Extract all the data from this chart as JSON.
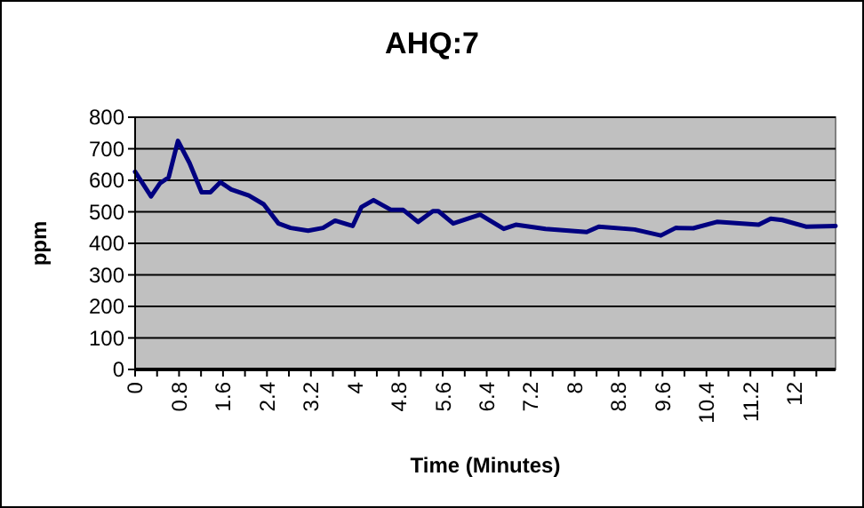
{
  "chart_data": {
    "type": "line",
    "title": "AHQ:7",
    "xlabel": "Time (Minutes)",
    "ylabel": "ppm",
    "x": [
      0,
      0.29,
      0.45,
      0.61,
      0.78,
      0.99,
      1.21,
      1.37,
      1.55,
      1.75,
      2.07,
      2.34,
      2.61,
      2.83,
      3.15,
      3.42,
      3.64,
      3.96,
      4.12,
      4.34,
      4.66,
      4.88,
      5.15,
      5.42,
      5.52,
      5.79,
      6.28,
      6.71,
      6.93,
      7.47,
      8.22,
      8.44,
      9.09,
      9.57,
      9.84,
      10.16,
      10.59,
      11.35,
      11.57,
      11.78,
      12.21,
      12.75
    ],
    "series": [
      {
        "color": "#000080",
        "values": [
          627,
          549,
          590,
          609,
          725,
          655,
          562,
          562,
          594,
          571,
          552,
          524,
          463,
          449,
          440,
          449,
          472,
          455,
          515,
          537,
          506,
          506,
          468,
          502,
          502,
          463,
          491,
          446,
          459,
          446,
          436,
          453,
          444,
          425,
          449,
          448,
          468,
          459,
          478,
          474,
          453,
          455
        ]
      }
    ],
    "xlim": [
      0,
      12.75
    ],
    "xticks": [
      0,
      {
        "value": 0.4,
        "label": null
      },
      0.8,
      {
        "value": 1.2,
        "label": null
      },
      1.6,
      {
        "value": 2,
        "label": null
      },
      2.4,
      {
        "value": 2.8,
        "label": null
      },
      3.2,
      {
        "value": 3.6,
        "label": null
      },
      4,
      {
        "value": 4.4,
        "label": null
      },
      4.8,
      {
        "value": 5.2,
        "label": null
      },
      5.6,
      {
        "value": 6,
        "label": null
      },
      6.4,
      {
        "value": 6.8,
        "label": null
      },
      7.2,
      {
        "value": 7.6,
        "label": null
      },
      8,
      {
        "value": 8.4,
        "label": null
      },
      8.8,
      {
        "value": 9.2,
        "label": null
      },
      9.6,
      {
        "value": 10,
        "label": null
      },
      10.4,
      {
        "value": 10.8,
        "label": null
      },
      11.2,
      {
        "value": 11.6,
        "label": null
      },
      12,
      {
        "value": 12.4,
        "label": null
      }
    ],
    "ylim": [
      0,
      800
    ],
    "yticks": [
      0,
      100,
      200,
      300,
      400,
      500,
      600,
      700,
      800
    ],
    "grid": "y",
    "marker": "none",
    "line_style": "solid"
  }
}
